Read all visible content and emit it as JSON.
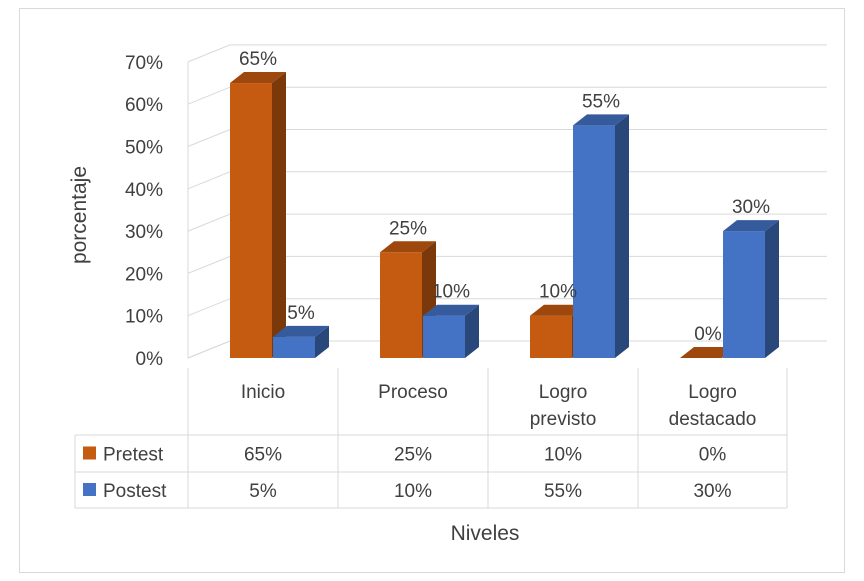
{
  "chart_data": {
    "type": "bar",
    "categories": [
      [
        "Inicio"
      ],
      [
        "Proceso"
      ],
      [
        "Logro",
        "previsto"
      ],
      [
        "Logro",
        "destacado"
      ]
    ],
    "series": [
      {
        "name": "Pretest",
        "values": [
          65,
          25,
          10,
          0
        ],
        "labels": [
          "65%",
          "25%",
          "10%",
          "0%"
        ],
        "color": "#c55a11"
      },
      {
        "name": "Postest",
        "values": [
          5,
          10,
          55,
          30
        ],
        "labels": [
          "5%",
          "10%",
          "55%",
          "30%"
        ],
        "color": "#4472c4"
      }
    ],
    "yticks": [
      "0%",
      "10%",
      "20%",
      "30%",
      "40%",
      "50%",
      "60%",
      "70%"
    ],
    "ylim": [
      0,
      70
    ],
    "ylabel": "porcentaje",
    "xlabel": "Niveles",
    "grid": true,
    "legend": "data-table-left"
  }
}
